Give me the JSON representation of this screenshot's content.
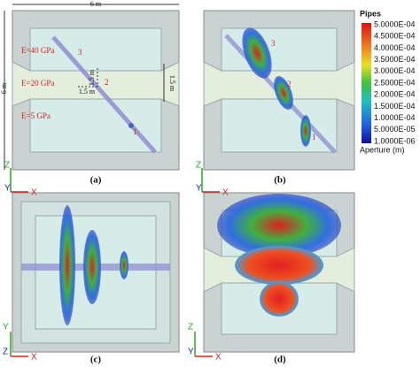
{
  "panels": [
    {
      "label": "(a)",
      "axes": [
        "Z",
        "Y",
        "X"
      ],
      "annotations": {
        "width": "6 m",
        "height": "6 m",
        "layers": [
          "E=40 GPa",
          "E=20 GPa",
          "E=5 GPa"
        ],
        "dims": [
          "1.5 m",
          "1.5 m",
          "1.5 m"
        ],
        "points": [
          "3",
          "2",
          "1"
        ]
      }
    },
    {
      "label": "(b)",
      "axes": [
        "Z",
        "Y",
        "X"
      ],
      "points": [
        "3",
        "2",
        "1"
      ]
    },
    {
      "label": "(c)",
      "axes": [
        "Y",
        "Z",
        "X"
      ]
    },
    {
      "label": "(d)",
      "axes": [
        "Z",
        "Y",
        "X"
      ]
    }
  ],
  "legend": {
    "title": "Pipes",
    "labels": [
      "5.0000E-04",
      "4.5000E-04",
      "4.0000E-04",
      "3.5000E-04",
      "3.0000E-04",
      "2.5000E-04",
      "2.0000E-04",
      "1.5000E-04",
      "1.0000E-04",
      "5.0000E-05",
      "1.0000E-06"
    ],
    "axis_label": "Aperture (m)"
  }
}
